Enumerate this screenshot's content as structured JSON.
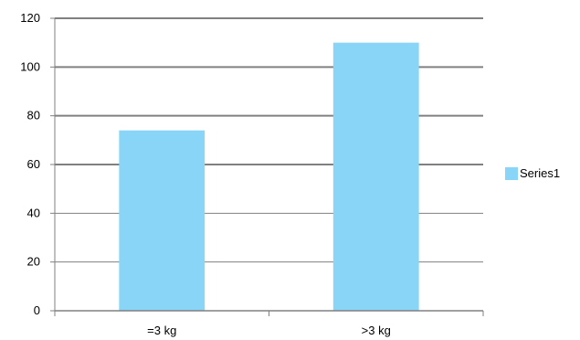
{
  "chart_data": {
    "type": "bar",
    "categories": [
      "=3 kg",
      ">3 kg"
    ],
    "series": [
      {
        "name": "Series1",
        "values": [
          74,
          110
        ],
        "color": "#89d5f7"
      }
    ],
    "xlabel": "",
    "ylabel": "",
    "ylim": [
      0,
      120
    ],
    "yticks": [
      0,
      20,
      40,
      60,
      80,
      100,
      120
    ],
    "grid": true,
    "legend_position": "right",
    "axis_color": "#808080",
    "grid_color": "#808080"
  }
}
